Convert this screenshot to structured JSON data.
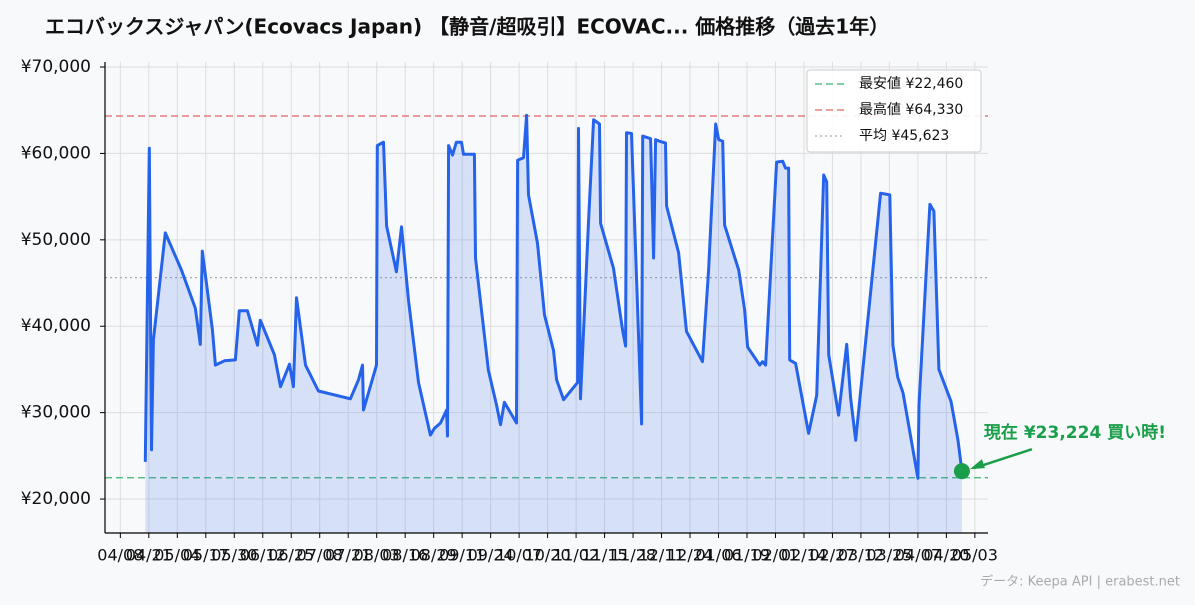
{
  "chart_data": {
    "type": "line",
    "title": "エコバックスジャパン(Ecovacs Japan) 【静音/超吸引】ECOVAC... 価格推移（過去1年）",
    "source": "データ: Keepa API | erabest.net",
    "series": [
      {
        "name": null,
        "color": "#2563eb",
        "x": [
          11.4,
          13.2,
          14.2,
          15.1,
          20.5,
          27.9,
          34.2,
          36.5,
          37.4,
          42.0,
          43.4,
          47.5,
          52.5,
          54.3,
          58.0,
          62.6,
          63.9,
          70.3,
          73.1,
          77.2,
          79.0,
          80.4,
          84.5,
          90.4,
          105.0,
          108.7,
          110.5,
          111.0,
          116.9,
          117.3,
          120.1,
          121.5,
          126.0,
          128.3,
          131.5,
          136.1,
          141.5,
          143.4,
          146.1,
          148.9,
          149.3,
          149.8,
          151.6,
          153.4,
          155.7,
          156.6,
          161.6,
          162.1,
          168.0,
          171.7,
          173.5,
          175.3,
          180.8,
          181.3,
          184.0,
          185.4,
          186.3,
          190.4,
          193.6,
          197.7,
          199.1,
          202.3,
          208.7,
          209.1,
          210.0,
          213.7,
          216.0,
          218.7,
          219.2,
          225.1,
          229.2,
          230.6,
          231.0,
          233.3,
          237.9,
          238.4,
          242.0,
          243.4,
          244.3,
          246.1,
          248.8,
          249.3,
          254.8,
          258.4,
          265.7,
          268.5,
          271.7,
          273.1,
          274.9,
          275.8,
          282.2,
          284.9,
          286.3,
          291.8,
          293.1,
          294.5,
          299.5,
          302.3,
          303.6,
          305.0,
          305.5,
          308.2,
          314.1,
          317.8,
          321.0,
          322.4,
          323.3,
          327.8,
          331.5,
          333.3,
          335.6,
          347.0,
          351.2,
          352.6,
          354.8,
          357.2,
          364.0,
          364.5,
          369.5,
          371.3,
          373.6,
          379.1,
          382.3,
          384.1
        ],
        "values": [
          24300,
          60600,
          25700,
          38400,
          50800,
          46500,
          42100,
          37900,
          48700,
          39600,
          35500,
          36000,
          36100,
          41800,
          41800,
          37800,
          40700,
          36700,
          33000,
          35600,
          33000,
          43300,
          35500,
          32500,
          31600,
          33800,
          35500,
          30300,
          35500,
          60900,
          61300,
          51600,
          46300,
          51500,
          43000,
          33500,
          27400,
          28200,
          28800,
          30300,
          27300,
          60900,
          59800,
          61300,
          61300,
          59900,
          59900,
          47900,
          34900,
          30900,
          28600,
          31200,
          28800,
          59200,
          59500,
          64400,
          55200,
          49600,
          41300,
          37200,
          33800,
          31500,
          33500,
          62900,
          31600,
          52300,
          63900,
          63400,
          51900,
          46700,
          39600,
          37700,
          62400,
          62300,
          28700,
          62000,
          61700,
          47900,
          61600,
          61400,
          61200,
          53900,
          48500,
          39400,
          35900,
          46500,
          63400,
          61600,
          61400,
          51700,
          46500,
          41900,
          37600,
          35500,
          35900,
          35500,
          59000,
          59100,
          58300,
          58300,
          36100,
          35700,
          27600,
          32000,
          57500,
          56700,
          36700,
          29700,
          37900,
          31700,
          26800,
          55400,
          55200,
          37800,
          34100,
          32300,
          22400,
          30900,
          54100,
          53300,
          35000,
          31300,
          26800,
          23224
        ]
      }
    ],
    "hlines": [
      {
        "name": "最安値 ¥22,460",
        "value": 22460,
        "color": "#3cb371",
        "style": "dashed"
      },
      {
        "name": "最高値 ¥64,330",
        "value": 64330,
        "color": "#e06666",
        "style": "dashed"
      },
      {
        "name": "平均 ¥45,623",
        "value": 45623,
        "color": "#aaaaaa",
        "style": "dotted"
      }
    ],
    "annotation": {
      "text": "現在 ¥23,224 買い時!",
      "color": "#1a9e4a"
    },
    "xlim": [
      -7,
      396
    ],
    "ylim": [
      16070,
      70580
    ],
    "xticks": [
      {
        "value": 0,
        "label": "04/08"
      },
      {
        "value": 13,
        "label": "04/21"
      },
      {
        "value": 26,
        "label": "05/04"
      },
      {
        "value": 39,
        "label": "05/17"
      },
      {
        "value": 52,
        "label": "05/30"
      },
      {
        "value": 65,
        "label": "06/12"
      },
      {
        "value": 78,
        "label": "06/25"
      },
      {
        "value": 91,
        "label": "07/08"
      },
      {
        "value": 104,
        "label": "07/21"
      },
      {
        "value": 117,
        "label": "08/03"
      },
      {
        "value": 130,
        "label": "08/16"
      },
      {
        "value": 143,
        "label": "08/29"
      },
      {
        "value": 156,
        "label": "09/11"
      },
      {
        "value": 169,
        "label": "09/24"
      },
      {
        "value": 182,
        "label": "10/07"
      },
      {
        "value": 195,
        "label": "10/20"
      },
      {
        "value": 208,
        "label": "11/02"
      },
      {
        "value": 221,
        "label": "11/15"
      },
      {
        "value": 234,
        "label": "11/28"
      },
      {
        "value": 247,
        "label": "12/11"
      },
      {
        "value": 260,
        "label": "12/24"
      },
      {
        "value": 273,
        "label": "01/06"
      },
      {
        "value": 286,
        "label": "01/19"
      },
      {
        "value": 299,
        "label": "02/01"
      },
      {
        "value": 312,
        "label": "02/14"
      },
      {
        "value": 325,
        "label": "02/27"
      },
      {
        "value": 338,
        "label": "03/12"
      },
      {
        "value": 351,
        "label": "03/25"
      },
      {
        "value": 364,
        "label": "04/07"
      },
      {
        "value": 377,
        "label": "04/20"
      },
      {
        "value": 390,
        "label": "05/03"
      }
    ],
    "yticks": [
      {
        "value": 20000,
        "label": "¥20,000"
      },
      {
        "value": 30000,
        "label": "¥30,000"
      },
      {
        "value": 40000,
        "label": "¥40,000"
      },
      {
        "value": 50000,
        "label": "¥50,000"
      },
      {
        "value": 60000,
        "label": "¥60,000"
      },
      {
        "value": 70000,
        "label": "¥70,000"
      }
    ],
    "grid": true,
    "legend": "upper right"
  }
}
